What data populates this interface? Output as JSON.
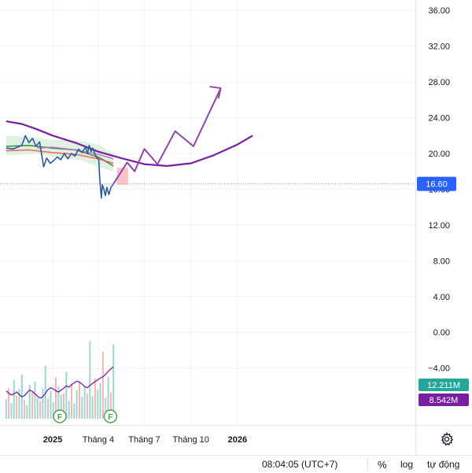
{
  "chart_data": {
    "type": "line",
    "time_axis": [
      "2024-10-01",
      "2026-01-31"
    ],
    "x_tick_labels": [
      {
        "date": "2025-01-01",
        "label": "2025",
        "bold": true
      },
      {
        "date": "2025-04-01",
        "label": "Tháng 4",
        "bold": false
      },
      {
        "date": "2025-07-01",
        "label": "Tháng 7",
        "bold": false
      },
      {
        "date": "2025-10-01",
        "label": "Tháng 10",
        "bold": false
      },
      {
        "date": "2026-01-01",
        "label": "2026",
        "bold": true
      }
    ],
    "ylim": [
      -6,
      37
    ],
    "y_ticks": [
      "36.00",
      "32.00",
      "28.00",
      "24.00",
      "20.00",
      "16.00",
      "12.00",
      "8.00",
      "4.00",
      "0.00",
      "−4.00"
    ],
    "price": [
      [
        "2024-10-01",
        20.6
      ],
      [
        "2024-10-15",
        20.5
      ],
      [
        "2024-11-01",
        20.9
      ],
      [
        "2024-11-08",
        22.0
      ],
      [
        "2024-11-15",
        21.2
      ],
      [
        "2024-11-22",
        21.7
      ],
      [
        "2024-11-29",
        20.8
      ],
      [
        "2024-12-06",
        21.3
      ],
      [
        "2024-12-11",
        19.6
      ],
      [
        "2024-12-14",
        18.5
      ],
      [
        "2024-12-20",
        19.5
      ],
      [
        "2024-12-27",
        18.9
      ],
      [
        "2025-01-03",
        19.2
      ],
      [
        "2025-01-10",
        19.6
      ],
      [
        "2025-01-17",
        19.3
      ],
      [
        "2025-01-24",
        20.0
      ],
      [
        "2025-01-31",
        19.4
      ],
      [
        "2025-02-07",
        20.0
      ],
      [
        "2025-02-14",
        19.7
      ],
      [
        "2025-02-21",
        20.5
      ],
      [
        "2025-02-28",
        20.1
      ],
      [
        "2025-03-07",
        20.7
      ],
      [
        "2025-03-11",
        20.0
      ],
      [
        "2025-03-14",
        20.9
      ],
      [
        "2025-03-18",
        20.2
      ],
      [
        "2025-03-21",
        20.6
      ],
      [
        "2025-03-28",
        19.6
      ],
      [
        "2025-04-02",
        19.3
      ],
      [
        "2025-04-04",
        17.2
      ],
      [
        "2025-04-07",
        15.0
      ],
      [
        "2025-04-09",
        16.5
      ],
      [
        "2025-04-12",
        16.0
      ],
      [
        "2025-04-15",
        15.3
      ],
      [
        "2025-04-18",
        16.2
      ],
      [
        "2025-04-22",
        15.4
      ],
      [
        "2025-04-26",
        16.2
      ],
      [
        "2025-05-01",
        16.6
      ]
    ],
    "bollinger_band": {
      "x": [
        "2024-10-01",
        "2024-11-01",
        "2024-12-01",
        "2025-01-01",
        "2025-02-01",
        "2025-03-01",
        "2025-04-01",
        "2025-05-01"
      ],
      "upper": [
        22.0,
        21.9,
        21.8,
        21.5,
        21.5,
        21.4,
        21.0,
        20.0
      ],
      "lower": [
        19.8,
        19.9,
        20.0,
        19.6,
        19.4,
        19.2,
        18.5,
        18.0
      ]
    },
    "ma_series": [
      {
        "color": "#2e7d32",
        "points": [
          [
            "2024-10-01",
            20.8
          ],
          [
            "2024-11-15",
            20.9
          ],
          [
            "2025-01-01",
            20.6
          ],
          [
            "2025-02-15",
            20.4
          ],
          [
            "2025-04-01",
            19.6
          ],
          [
            "2025-05-01",
            18.6
          ]
        ]
      },
      {
        "color": "#ef5350",
        "points": [
          [
            "2024-10-01",
            20.3
          ],
          [
            "2024-11-15",
            20.4
          ],
          [
            "2025-01-01",
            20.1
          ],
          [
            "2025-02-15",
            19.9
          ],
          [
            "2025-04-01",
            19.4
          ],
          [
            "2025-05-01",
            18.9
          ]
        ]
      },
      {
        "color": "#ba68c8",
        "points": [
          [
            "2024-12-01",
            20.6
          ],
          [
            "2025-01-01",
            20.7
          ],
          [
            "2025-02-15",
            20.4
          ],
          [
            "2025-04-01",
            19.9
          ],
          [
            "2025-05-01",
            19.4
          ]
        ]
      },
      {
        "color": "#7b1fa2",
        "points": [
          [
            "2024-10-01",
            23.6
          ],
          [
            "2024-11-01",
            23.3
          ],
          [
            "2024-12-01",
            22.7
          ],
          [
            "2025-01-01",
            22.0
          ],
          [
            "2025-02-15",
            21.2
          ],
          [
            "2025-04-01",
            20.2
          ],
          [
            "2025-05-15",
            19.5
          ],
          [
            "2025-07-01",
            18.8
          ],
          [
            "2025-08-15",
            18.6
          ],
          [
            "2025-10-01",
            18.9
          ],
          [
            "2025-11-15",
            19.8
          ],
          [
            "2026-01-01",
            21.0
          ],
          [
            "2026-01-31",
            22.0
          ]
        ]
      }
    ],
    "projection": {
      "color": "#8e44ad",
      "points": [
        [
          "2025-05-01",
          16.6
        ],
        [
          "2025-05-28",
          19.0
        ],
        [
          "2025-06-12",
          18.0
        ],
        [
          "2025-07-01",
          20.5
        ],
        [
          "2025-07-27",
          18.8
        ],
        [
          "2025-08-31",
          22.5
        ],
        [
          "2025-10-06",
          20.8
        ],
        [
          "2025-11-29",
          27.3
        ]
      ]
    },
    "future_box": {
      "from": "2025-05-08",
      "to": "2025-05-30",
      "top": 18.4,
      "bottom": 16.5,
      "color": "#f4b6b6"
    },
    "last_price": {
      "value": 16.6,
      "label": "16.60",
      "color": "#2962ff"
    },
    "volume": {
      "ylim": [
        0,
        14
      ],
      "bars": [
        3.2,
        5.1,
        2.6,
        6.4,
        3.8,
        4.9,
        7.3,
        3.1,
        2.2,
        5.6,
        4.4,
        6.1,
        3.5,
        2.9,
        5.0,
        8.7,
        3.3,
        4.6,
        2.7,
        6.8,
        5.3,
        3.9,
        4.2,
        7.7,
        3.0,
        5.8,
        2.5,
        4.7,
        6.2,
        3.6,
        5.4,
        4.1,
        12.8,
        3.7,
        6.6,
        4.8,
        5.9,
        11.0,
        3.4,
        6.9,
        4.3,
        12.211
      ],
      "up_color": "#9fd6cf",
      "down_color": "#f3b7b3",
      "ma": [
        4.6,
        4.2,
        3.9,
        4.1,
        4.4,
        4.0,
        3.6,
        3.8,
        4.3,
        4.7,
        4.5,
        4.1,
        3.7,
        3.4,
        3.6,
        4.2,
        4.8,
        5.1,
        4.9,
        4.6,
        4.4,
        4.7,
        5.0,
        5.4,
        5.2,
        5.6,
        5.9,
        6.2,
        6.0,
        5.7,
        5.3,
        5.1,
        5.5,
        5.8,
        6.1,
        6.4,
        6.7,
        6.9,
        7.3,
        7.8,
        8.2,
        8.542
      ],
      "ma_color": "#7b1fa2",
      "labels": [
        {
          "text": "12.211M",
          "value": 12.211,
          "color": "#26a69a"
        },
        {
          "text": "8.542M",
          "value": 8.542,
          "color": "#7b1fa2"
        }
      ],
      "markers": [
        {
          "date": "2025-01-15",
          "text": "F"
        },
        {
          "date": "2025-04-25",
          "text": "F"
        }
      ]
    }
  },
  "status_bar": {
    "time": "08:04:05 (UTC+7)",
    "percent": "%",
    "log": "log",
    "auto": "tự động"
  }
}
